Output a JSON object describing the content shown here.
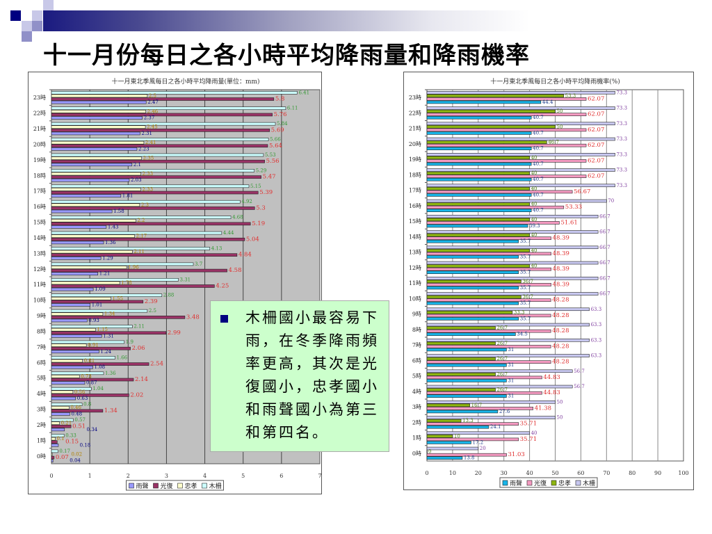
{
  "slide": {
    "title": "十一月份每日之各小時平均降雨量和降雨機率",
    "note": "木柵國小最容易下雨，在冬季降雨頻率更高，其次是光復國小，忠孝國小和雨聲國小為第三和第四名。",
    "colors": {
      "accent": "#000080",
      "header_bar": "#1a1a80",
      "note_bg": "#ccffcc"
    }
  },
  "chart_data": [
    {
      "type": "bar",
      "orientation": "horizontal",
      "title": "十一月東北季風每日之各小時平均降雨量(單位：mm)",
      "categories": [
        "0時",
        "1時",
        "2時",
        "3時",
        "4時",
        "5時",
        "6時",
        "7時",
        "8時",
        "9時",
        "10時",
        "11時",
        "12時",
        "13時",
        "14時",
        "15時",
        "16時",
        "17時",
        "18時",
        "19時",
        "20時",
        "21時",
        "22時",
        "23時"
      ],
      "xlim": [
        0,
        7
      ],
      "xticks": [
        0,
        1,
        2,
        3,
        4,
        5,
        6,
        7
      ],
      "grid": true,
      "legend_position": "bottom",
      "legend": [
        "雨聲",
        "光復",
        "忠孝",
        "木柵"
      ],
      "series": [
        {
          "name": "雨聲",
          "color": "#9999ff",
          "label_color": "#000080",
          "values": [
            0.04,
            0.18,
            0.34,
            0.48,
            0.63,
            0.87,
            1.08,
            1.24,
            1.31,
            0.93,
            1.01,
            1.09,
            1.21,
            1.29,
            1.36,
            1.43,
            1.58,
            1.81,
            2.03,
            2.1,
            2.23,
            2.31,
            2.37,
            2.47
          ]
        },
        {
          "name": "光復",
          "color": "#993366",
          "label_color": "#e03030",
          "values": [
            0.07,
            0.15,
            0.51,
            1.34,
            2.02,
            2.14,
            2.54,
            2.06,
            2.99,
            3.48,
            2.39,
            4.25,
            4.58,
            4.84,
            5.04,
            5.19,
            5.3,
            5.39,
            5.47,
            5.56,
            5.64,
            5.69,
            5.76,
            5.8
          ]
        },
        {
          "name": "忠孝",
          "color": "#ffffcc",
          "label_color": "#b08000",
          "values": [
            0.02,
            0.1,
            0.21,
            0.46,
            0.56,
            0.73,
            0.81,
            0.91,
            1.15,
            1.34,
            1.55,
            1.78,
            1.96,
            2.11,
            2.17,
            2.2,
            2.3,
            2.33,
            2.33,
            2.35,
            2.41,
            2.45,
            2.46,
            2.5
          ]
        },
        {
          "name": "木柵",
          "color": "#ccffff",
          "label_color": "#339933",
          "values": [
            0.17,
            0.33,
            0.57,
            0.8,
            1.04,
            1.36,
            1.66,
            1.9,
            2.11,
            2.5,
            2.88,
            3.31,
            3.7,
            4.13,
            4.44,
            4.68,
            4.92,
            5.15,
            5.29,
            5.53,
            5.66,
            5.84,
            6.11,
            6.41
          ]
        }
      ]
    },
    {
      "type": "bar",
      "orientation": "horizontal",
      "title": "十一月東北季風每日之各小時平均降雨機率(%)",
      "categories": [
        "0時",
        "1時",
        "2時",
        "3時",
        "4時",
        "5時",
        "6時",
        "7時",
        "8時",
        "9時",
        "10時",
        "11時",
        "12時",
        "13時",
        "14時",
        "15時",
        "16時",
        "17時",
        "18時",
        "19時",
        "20時",
        "21時",
        "22時",
        "23時"
      ],
      "xlim": [
        0,
        100
      ],
      "xticks": [
        0,
        10,
        20,
        30,
        40,
        50,
        60,
        70,
        80,
        90,
        100
      ],
      "grid": true,
      "legend_position": "bottom",
      "legend": [
        "雨聲",
        "光復",
        "忠孝",
        "木柵"
      ],
      "series": [
        {
          "name": "雨聲",
          "color": "#18b4e8",
          "label_color": "#1a3a8a",
          "values": [
            13.8,
            17.2,
            24.1,
            27.6,
            31,
            31,
            31,
            31,
            34.5,
            35.7,
            35.7,
            35.7,
            35.7,
            35.7,
            35.7,
            39.3,
            40.7,
            40.7,
            40.7,
            40.7,
            40.7,
            40.7,
            40.7,
            44.4
          ]
        },
        {
          "name": "光復",
          "color": "#f49ac1",
          "label_color": "#e03030",
          "values": [
            31.03,
            35.71,
            35.71,
            41.38,
            44.83,
            44.83,
            48.28,
            48.28,
            48.28,
            48.28,
            48.28,
            48.39,
            48.39,
            48.39,
            48.39,
            51.61,
            53.33,
            56.67,
            62.07,
            62.07,
            62.07,
            62.07,
            62.07,
            62.07
          ]
        },
        {
          "name": "忠孝",
          "color": "#8db510",
          "label_color": "#4a7a10",
          "values": [
            0,
            10,
            13.3,
            16.7,
            26.7,
            26.7,
            26.7,
            26.7,
            26.7,
            33.3,
            36.7,
            36.7,
            40,
            40,
            40,
            40,
            40,
            40,
            40,
            40,
            46.7,
            50,
            50,
            53.3
          ]
        },
        {
          "name": "木柵",
          "color": "#c8c8f0",
          "label_color": "#8040a0",
          "values": [
            20,
            40,
            50,
            50,
            56.7,
            56.7,
            63.3,
            63.3,
            63.3,
            63.3,
            66.7,
            66.7,
            66.7,
            66.7,
            66.7,
            66.7,
            70,
            73.3,
            73.3,
            73.3,
            73.3,
            73.3,
            73.3,
            73.3
          ]
        }
      ]
    }
  ]
}
